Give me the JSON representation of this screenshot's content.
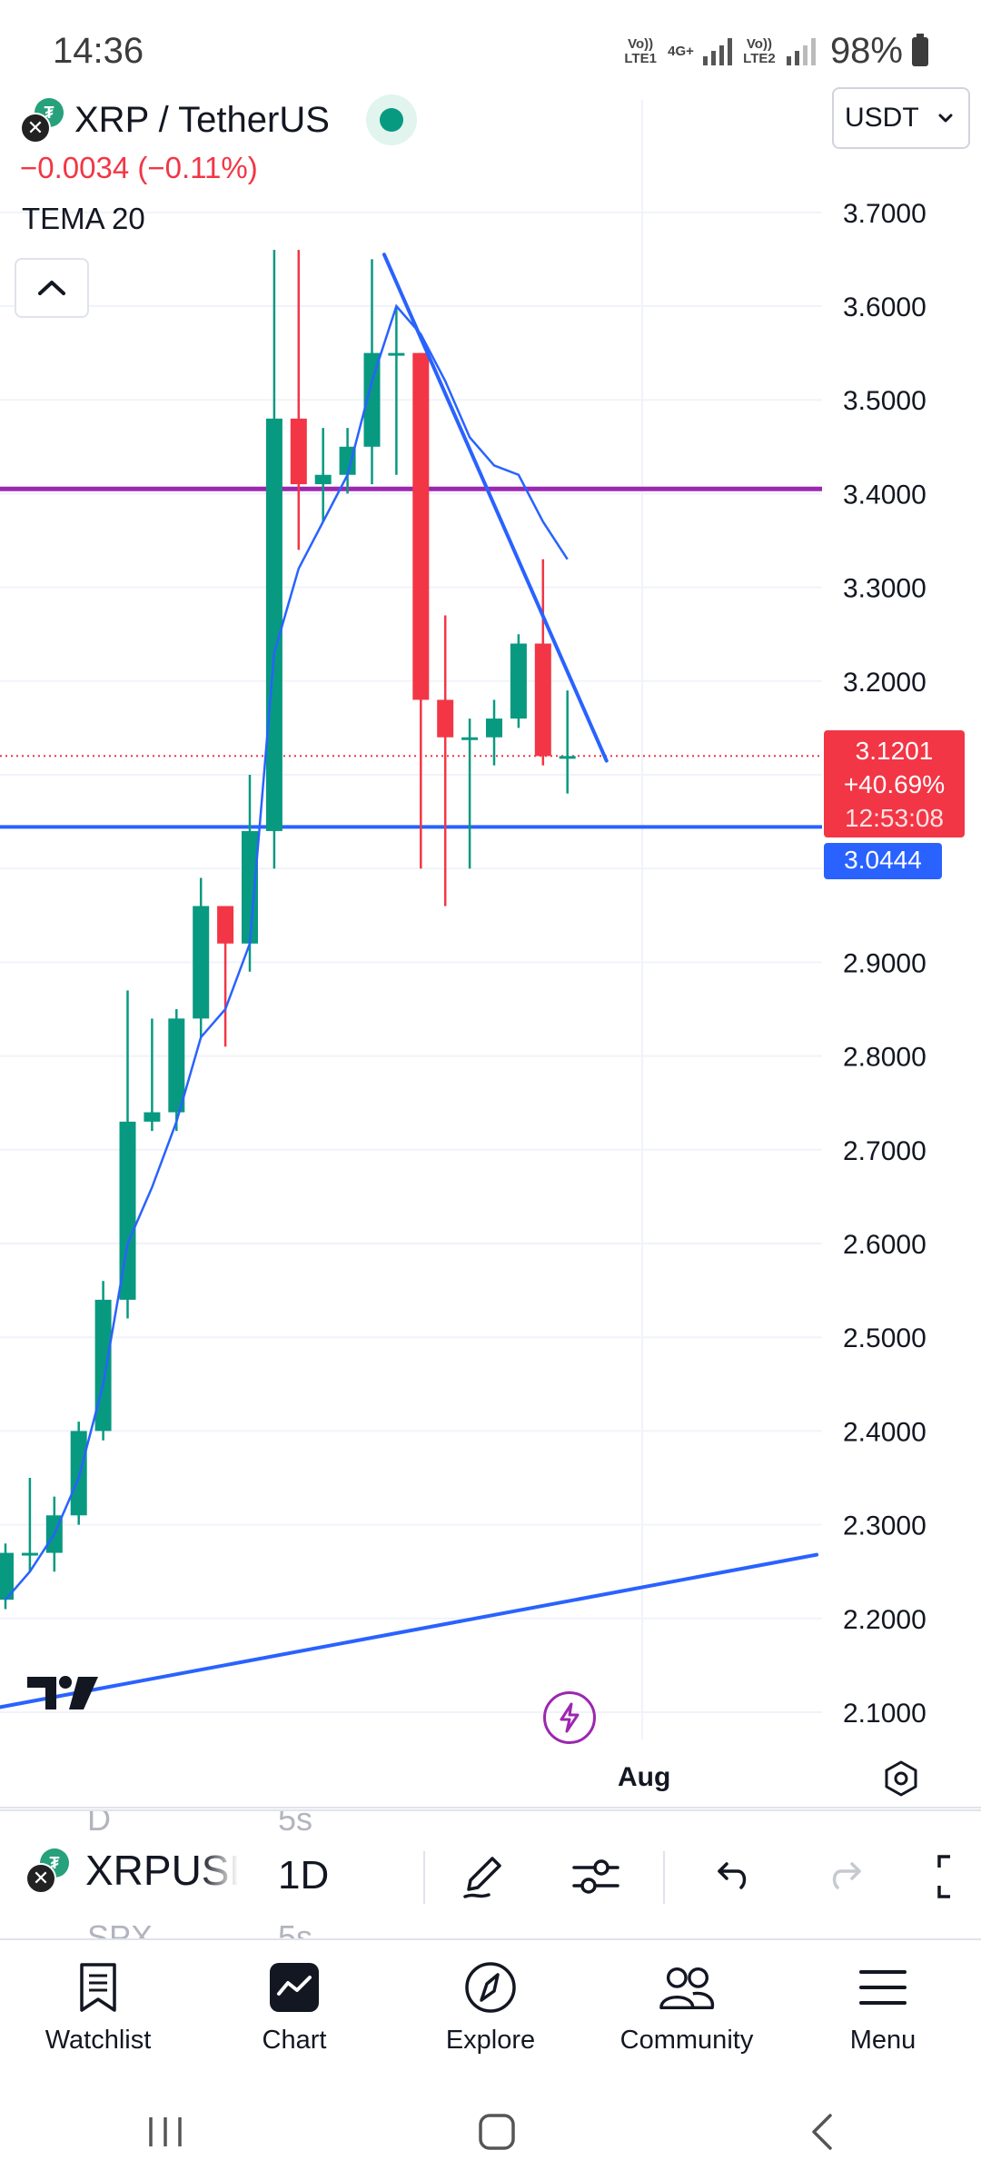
{
  "status_bar": {
    "time": "14:36",
    "sim1_label": "Vo)) LTE1",
    "net_label": "4G+",
    "sim2_label": "Vo)) LTE2",
    "battery": "98%"
  },
  "chart": {
    "symbol_title": "XRP / TetherUS",
    "price_change": "−0.0034 (−0.11%)",
    "indicator": "TEMA 20",
    "currency": "USDT",
    "last_price": "3.1201",
    "percent_change": "+40.69%",
    "countdown": "12:53:08",
    "line_price": "3.0444",
    "time_axis_label": "Aug",
    "icons": {
      "collapse": "chevron-up-icon",
      "dropdown": "chevron-down-icon",
      "logo": "tradingview-logo",
      "flash": "lightning-icon",
      "settings": "hexagon-settings-icon"
    },
    "colors": {
      "up": "#089981",
      "down": "#f23645",
      "trendline": "#2962ff",
      "resistance": "#9c27b0",
      "current_price_bg": "#f23645",
      "line_price_bg": "#2962ff"
    }
  },
  "chart_data": {
    "type": "candlestick",
    "title": "XRP / TetherUS",
    "interval": "1D",
    "quote_currency": "USDT",
    "y_ticks": [
      "3.7000",
      "3.6000",
      "3.5000",
      "3.4000",
      "3.3000",
      "3.2000",
      "2.9000",
      "2.8000",
      "2.7000",
      "2.6000",
      "2.5000",
      "2.4000",
      "2.3000",
      "2.2000",
      "2.1000"
    ],
    "ylim": [
      2.07,
      3.77
    ],
    "x_tick": "Aug",
    "candles": [
      {
        "o": 2.22,
        "h": 2.28,
        "l": 2.21,
        "c": 2.27
      },
      {
        "o": 2.27,
        "h": 2.35,
        "l": 2.25,
        "c": 2.27
      },
      {
        "o": 2.27,
        "h": 2.33,
        "l": 2.25,
        "c": 2.31
      },
      {
        "o": 2.31,
        "h": 2.41,
        "l": 2.3,
        "c": 2.4
      },
      {
        "o": 2.4,
        "h": 2.56,
        "l": 2.39,
        "c": 2.54
      },
      {
        "o": 2.54,
        "h": 2.87,
        "l": 2.52,
        "c": 2.73
      },
      {
        "o": 2.73,
        "h": 2.84,
        "l": 2.72,
        "c": 2.74
      },
      {
        "o": 2.74,
        "h": 2.85,
        "l": 2.72,
        "c": 2.84
      },
      {
        "o": 2.84,
        "h": 2.99,
        "l": 2.82,
        "c": 2.96
      },
      {
        "o": 2.96,
        "h": 2.96,
        "l": 2.81,
        "c": 2.92
      },
      {
        "o": 2.92,
        "h": 3.1,
        "l": 2.89,
        "c": 3.04
      },
      {
        "o": 3.04,
        "h": 3.66,
        "l": 3.0,
        "c": 3.48
      },
      {
        "o": 3.48,
        "h": 3.66,
        "l": 3.34,
        "c": 3.41
      },
      {
        "o": 3.41,
        "h": 3.47,
        "l": 3.37,
        "c": 3.42
      },
      {
        "o": 3.42,
        "h": 3.47,
        "l": 3.4,
        "c": 3.45
      },
      {
        "o": 3.45,
        "h": 3.65,
        "l": 3.41,
        "c": 3.55
      },
      {
        "o": 3.55,
        "h": 3.6,
        "l": 3.42,
        "c": 3.55
      },
      {
        "o": 3.55,
        "h": 3.55,
        "l": 3.0,
        "c": 3.18
      },
      {
        "o": 3.18,
        "h": 3.27,
        "l": 2.96,
        "c": 3.14
      },
      {
        "o": 3.14,
        "h": 3.16,
        "l": 3.0,
        "c": 3.14
      },
      {
        "o": 3.14,
        "h": 3.18,
        "l": 3.11,
        "c": 3.16
      },
      {
        "o": 3.16,
        "h": 3.25,
        "l": 3.15,
        "c": 3.24
      },
      {
        "o": 3.24,
        "h": 3.33,
        "l": 3.11,
        "c": 3.12
      },
      {
        "o": 3.12,
        "h": 3.19,
        "l": 3.08,
        "c": 3.12
      }
    ],
    "tema": [
      2.22,
      2.25,
      2.29,
      2.35,
      2.45,
      2.6,
      2.66,
      2.73,
      2.82,
      2.85,
      2.92,
      3.23,
      3.32,
      3.37,
      3.42,
      3.52,
      3.6,
      3.57,
      3.52,
      3.46,
      3.43,
      3.42,
      3.37,
      3.33
    ],
    "horizontal_lines": [
      {
        "price": 3.405,
        "color": "#9c27b0"
      },
      {
        "price": 3.0444,
        "color": "#2962ff"
      }
    ],
    "current_price": 3.1201,
    "trendlines": [
      {
        "p1": {
          "i": 15.5,
          "price": 3.655
        },
        "p2": {
          "i": 24.6,
          "price": 3.115
        }
      },
      {
        "p1": {
          "i": -0.3,
          "price": 2.105
        },
        "p2": {
          "i": 33.2,
          "price": 2.268
        }
      }
    ]
  },
  "toolbar": {
    "symbol": "XRPUSD",
    "interval": "1D",
    "ghost_above_symbol": "D",
    "ghost_above_interval": "5s",
    "ghost_below_symbol": "SPX",
    "ghost_below_interval": "5s",
    "icons": [
      "pen-icon",
      "sliders-icon",
      "undo-icon",
      "redo-icon",
      "fullscreen-icon"
    ]
  },
  "bottom_nav": {
    "items": [
      {
        "label": "Watchlist",
        "icon": "bookmark-list-icon"
      },
      {
        "label": "Chart",
        "icon": "chart-icon"
      },
      {
        "label": "Explore",
        "icon": "compass-icon"
      },
      {
        "label": "Community",
        "icon": "people-icon"
      },
      {
        "label": "Menu",
        "icon": "hamburger-icon"
      }
    ]
  },
  "system_nav": {
    "icons": [
      "recents-icon",
      "home-icon",
      "back-icon"
    ]
  }
}
